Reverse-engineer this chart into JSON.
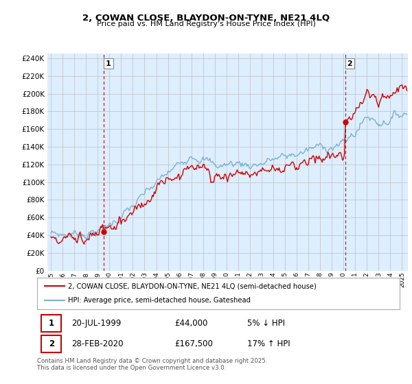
{
  "title": "2, COWAN CLOSE, BLAYDON-ON-TYNE, NE21 4LQ",
  "subtitle": "Price paid vs. HM Land Registry's House Price Index (HPI)",
  "legend1": "2, COWAN CLOSE, BLAYDON-ON-TYNE, NE21 4LQ (semi-detached house)",
  "legend2": "HPI: Average price, semi-detached house, Gateshead",
  "sale1_date": "20-JUL-1999",
  "sale1_price": "£44,000",
  "sale1_hpi": "5% ↓ HPI",
  "sale2_date": "28-FEB-2020",
  "sale2_price": "£167,500",
  "sale2_hpi": "17% ↑ HPI",
  "footnote": "Contains HM Land Registry data © Crown copyright and database right 2025.\nThis data is licensed under the Open Government Licence v3.0.",
  "property_color": "#cc0000",
  "hpi_color": "#7ab0d4",
  "vline_color": "#cc0000",
  "grid_color": "#c0c0c0",
  "plot_bg_color": "#ddeeff",
  "bg_color": "#ffffff",
  "ylim": [
    0,
    245000
  ],
  "yticks": [
    0,
    20000,
    40000,
    60000,
    80000,
    100000,
    120000,
    140000,
    160000,
    180000,
    200000,
    220000,
    240000
  ],
  "sale1_x": 1999.54,
  "sale1_y": 44000,
  "sale2_x": 2020.16,
  "sale2_y": 167500,
  "xmin": 1994.7,
  "xmax": 2025.5
}
